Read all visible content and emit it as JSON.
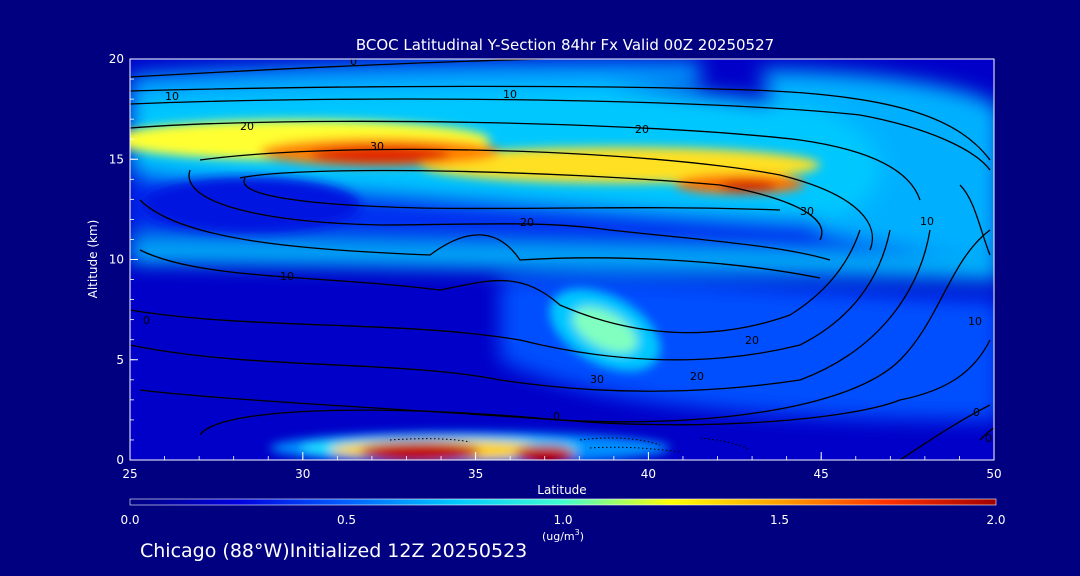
{
  "chart_data": {
    "type": "heatmap",
    "title": "BCOC Latitudinal Y-Section 84hr  Fx Valid 00Z 20250527",
    "xlabel": "Latitude",
    "ylabel": "Altitude (km)",
    "xlim": [
      25,
      50
    ],
    "ylim": [
      0,
      20
    ],
    "xticks": [
      "25",
      "30",
      "35",
      "40",
      "45",
      "50"
    ],
    "yticks": [
      "0",
      "5",
      "10",
      "15",
      "20"
    ],
    "colorbar": {
      "label_main": "(ug/m",
      "label_sup": "3",
      "label_end": ")",
      "range": [
        0.0,
        2.0
      ],
      "ticks": [
        "0.0",
        "0.5",
        "1.0",
        "1.5",
        "2.0"
      ],
      "colors": [
        "#000080",
        "#0000e0",
        "#0060ff",
        "#00c8ff",
        "#40ffd0",
        "#ffff00",
        "#ffa000",
        "#ff3000",
        "#a00000"
      ]
    },
    "contour_labels": [
      "0",
      "10",
      "20",
      "30",
      "10",
      "20",
      "30",
      "20",
      "10",
      "10",
      "20",
      "30",
      "0",
      "20",
      "0",
      "10",
      "0",
      "0"
    ],
    "features": [
      {
        "name": "upper-layer",
        "lat": [
          26,
          45
        ],
        "alt": [
          13,
          17.5
        ],
        "peak": 1.95,
        "peak_lat": 32.5,
        "peak_alt": 15.2
      },
      {
        "name": "upper-layer-east-peak",
        "lat": [
          40,
          45
        ],
        "alt": [
          13,
          14.5
        ],
        "peak": 1.7,
        "peak_lat": 43,
        "peak_alt": 13.8
      },
      {
        "name": "mid-plume",
        "lat": [
          37,
          40
        ],
        "alt": [
          5,
          8
        ],
        "peak": 1.2,
        "peak_lat": 38.5,
        "peak_alt": 6.3
      },
      {
        "name": "surface-plume",
        "lat": [
          30,
          39
        ],
        "alt": [
          0,
          1.2
        ],
        "peak": 2.0,
        "peak_lat": 33.5,
        "peak_alt": 0.3
      }
    ]
  },
  "footer": {
    "text": "Chicago (88°W)Initialized 12Z 20250523"
  }
}
